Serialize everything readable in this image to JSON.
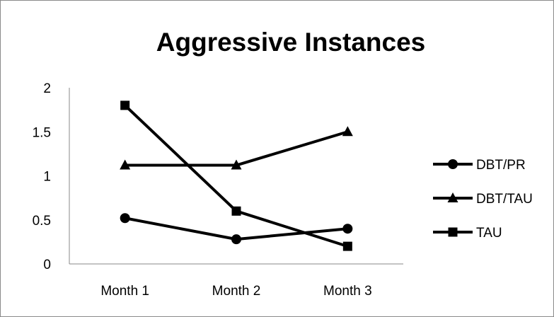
{
  "chart_data": {
    "type": "line",
    "title": "Aggressive Instances",
    "xlabel": "",
    "ylabel": "",
    "categories": [
      "Month 1",
      "Month 2",
      "Month 3"
    ],
    "ylim": [
      0,
      2
    ],
    "yticks": [
      "0",
      "0.5",
      "1",
      "1.5",
      "2"
    ],
    "grid": false,
    "legend_position": "right",
    "series": [
      {
        "name": "DBT/PR",
        "marker": "circle",
        "color": "#000000",
        "values": [
          0.52,
          0.28,
          0.4
        ]
      },
      {
        "name": "DBT/TAU",
        "marker": "triangle",
        "color": "#000000",
        "values": [
          1.12,
          1.12,
          1.5
        ]
      },
      {
        "name": "TAU",
        "marker": "square",
        "color": "#000000",
        "values": [
          1.8,
          0.6,
          0.2
        ]
      }
    ]
  }
}
